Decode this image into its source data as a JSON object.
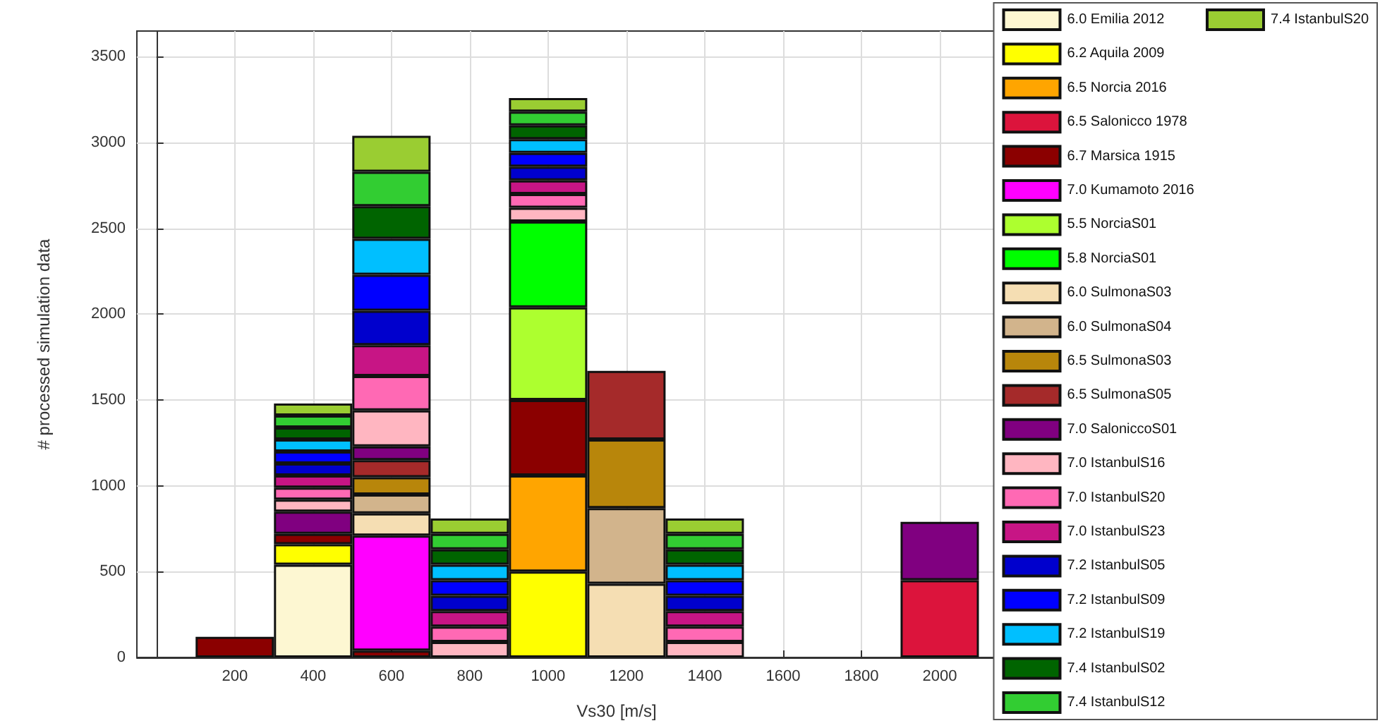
{
  "chart_data": {
    "type": "bar",
    "stacked": true,
    "xlabel": "Vs30 [m/s]",
    "ylabel": "# processed simulation data",
    "x": [
      200,
      400,
      600,
      800,
      1000,
      1200,
      1400,
      1600,
      1800,
      2000
    ],
    "xlim": [
      -50,
      2400
    ],
    "xticks": [
      200,
      400,
      600,
      800,
      1000,
      1200,
      1400,
      1600,
      1800,
      2000
    ],
    "ylim": [
      0,
      3650
    ],
    "yticks": [
      0,
      500,
      1000,
      1500,
      2000,
      2500,
      3000,
      3500
    ],
    "grid": true,
    "legend": "right",
    "series": [
      {
        "name": "6.0 Emilia 2012",
        "color": "#fdf7d2",
        "values": [
          null,
          540,
          null,
          null,
          null,
          null,
          null,
          null,
          null,
          null
        ]
      },
      {
        "name": "6.2 Aquila 2009",
        "color": "#ffff00",
        "values": [
          null,
          120,
          null,
          null,
          500,
          null,
          null,
          null,
          null,
          null
        ]
      },
      {
        "name": "6.5 Norcia 2016",
        "color": "#ffa500",
        "values": [
          null,
          null,
          null,
          null,
          560,
          null,
          null,
          null,
          null,
          null
        ]
      },
      {
        "name": "6.5 Salonicco 1978",
        "color": "#dc143c",
        "values": [
          null,
          null,
          null,
          null,
          null,
          null,
          null,
          null,
          null,
          450
        ]
      },
      {
        "name": "6.7 Marsica 1915",
        "color": "#8b0000",
        "values": [
          120,
          60,
          40,
          null,
          440,
          null,
          null,
          null,
          null,
          null
        ]
      },
      {
        "name": "7.0 Kumamoto 2016",
        "color": "#ff00ff",
        "values": [
          null,
          null,
          670,
          null,
          null,
          null,
          null,
          null,
          null,
          null
        ]
      },
      {
        "name": "5.5 NorciaS01",
        "color": "#adff2f",
        "values": [
          null,
          null,
          null,
          null,
          540,
          null,
          null,
          null,
          null,
          null
        ]
      },
      {
        "name": "5.8 NorciaS01",
        "color": "#00ff00",
        "values": [
          null,
          null,
          null,
          null,
          500,
          null,
          null,
          null,
          null,
          null
        ]
      },
      {
        "name": "6.0 SulmonaS03",
        "color": "#f5deb3",
        "values": [
          null,
          null,
          130,
          null,
          null,
          430,
          null,
          null,
          null,
          null
        ]
      },
      {
        "name": "6.0 SulmonaS04",
        "color": "#d2b48c",
        "values": [
          null,
          null,
          110,
          null,
          null,
          440,
          null,
          null,
          null,
          null
        ]
      },
      {
        "name": "6.5 SulmonaS03",
        "color": "#b8860b",
        "values": [
          null,
          null,
          100,
          null,
          null,
          400,
          null,
          null,
          null,
          null
        ]
      },
      {
        "name": "6.5 SulmonaS05",
        "color": "#a52a2a",
        "values": [
          null,
          null,
          100,
          null,
          null,
          400,
          null,
          null,
          null,
          null
        ]
      },
      {
        "name": "7.0 SaloniccoS01",
        "color": "#800080",
        "values": [
          null,
          130,
          80,
          null,
          null,
          null,
          null,
          null,
          null,
          340
        ]
      },
      {
        "name": "7.0 IstanbulS16",
        "color": "#ffb6c1",
        "values": [
          null,
          70,
          210,
          90,
          80,
          null,
          90,
          null,
          null,
          null
        ]
      },
      {
        "name": "7.0 IstanbulS20",
        "color": "#ff69b4",
        "values": [
          null,
          70,
          200,
          90,
          80,
          null,
          90,
          null,
          null,
          null
        ]
      },
      {
        "name": "7.0 IstanbulS23",
        "color": "#c71585",
        "values": [
          null,
          70,
          180,
          90,
          80,
          null,
          90,
          null,
          null,
          null
        ]
      },
      {
        "name": "7.2 IstanbulS05",
        "color": "#0000cd",
        "values": [
          null,
          70,
          200,
          90,
          80,
          null,
          90,
          null,
          null,
          null
        ]
      },
      {
        "name": "7.2 IstanbulS09",
        "color": "#0000ff",
        "values": [
          null,
          70,
          210,
          90,
          80,
          null,
          90,
          null,
          null,
          null
        ]
      },
      {
        "name": "7.2 IstanbulS19",
        "color": "#00bfff",
        "values": [
          null,
          70,
          210,
          90,
          80,
          null,
          90,
          null,
          null,
          null
        ]
      },
      {
        "name": "7.4 IstanbulS02",
        "color": "#006400",
        "values": [
          null,
          70,
          190,
          90,
          80,
          null,
          90,
          null,
          null,
          null
        ]
      },
      {
        "name": "7.4 IstanbulS12",
        "color": "#32cd32",
        "values": [
          null,
          70,
          200,
          90,
          80,
          null,
          90,
          null,
          null,
          null
        ]
      },
      {
        "name": "7.4 IstanbulS20",
        "color": "#9acd32",
        "values": [
          null,
          70,
          210,
          90,
          80,
          null,
          90,
          null,
          null,
          null
        ]
      }
    ]
  }
}
